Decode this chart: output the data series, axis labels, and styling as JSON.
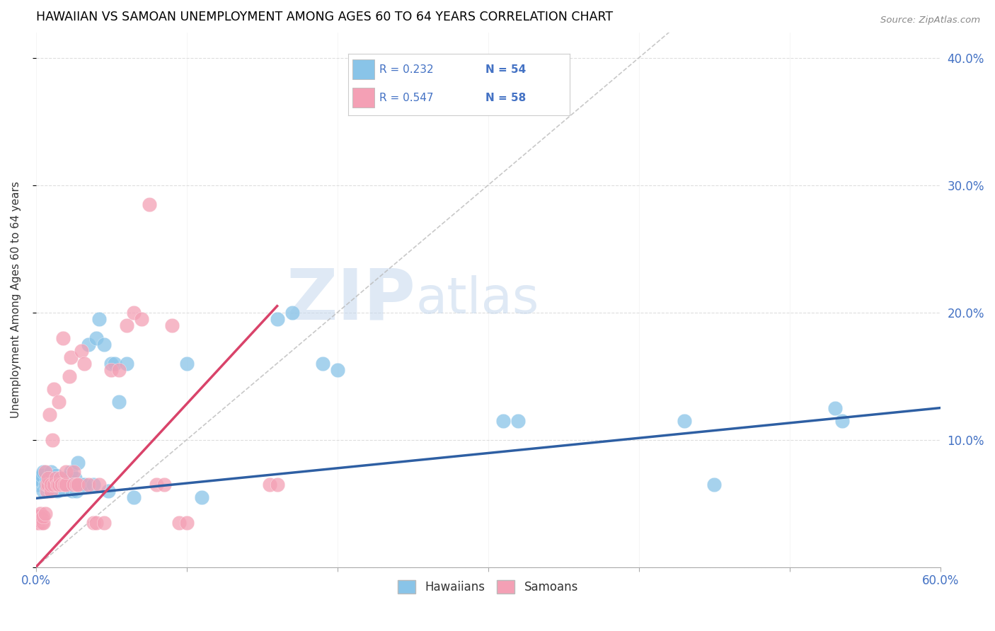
{
  "title": "HAWAIIAN VS SAMOAN UNEMPLOYMENT AMONG AGES 60 TO 64 YEARS CORRELATION CHART",
  "source": "Source: ZipAtlas.com",
  "ylabel": "Unemployment Among Ages 60 to 64 years",
  "xlim": [
    0.0,
    0.6
  ],
  "ylim": [
    0.0,
    0.42
  ],
  "xticks": [
    0.0,
    0.1,
    0.2,
    0.3,
    0.4,
    0.5,
    0.6
  ],
  "yticks": [
    0.0,
    0.1,
    0.2,
    0.3,
    0.4
  ],
  "hawaiian_color": "#89c4e8",
  "samoan_color": "#f4a0b5",
  "hawaiian_line_color": "#2e5fa3",
  "samoan_line_color": "#d9436a",
  "diagonal_color": "#bbbbbb",
  "watermark_zip": "ZIP",
  "watermark_atlas": "atlas",
  "hawaiian_x": [
    0.001,
    0.002,
    0.003,
    0.004,
    0.005,
    0.005,
    0.006,
    0.007,
    0.008,
    0.009,
    0.01,
    0.011,
    0.012,
    0.013,
    0.014,
    0.015,
    0.016,
    0.017,
    0.018,
    0.019,
    0.02,
    0.021,
    0.022,
    0.023,
    0.024,
    0.025,
    0.026,
    0.027,
    0.028,
    0.03,
    0.032,
    0.035,
    0.038,
    0.04,
    0.042,
    0.045,
    0.048,
    0.05,
    0.052,
    0.055,
    0.06,
    0.065,
    0.1,
    0.11,
    0.16,
    0.17,
    0.19,
    0.2,
    0.31,
    0.32,
    0.43,
    0.45,
    0.53,
    0.535
  ],
  "hawaiian_y": [
    0.065,
    0.07,
    0.068,
    0.072,
    0.06,
    0.075,
    0.065,
    0.068,
    0.062,
    0.07,
    0.075,
    0.068,
    0.065,
    0.072,
    0.06,
    0.065,
    0.07,
    0.065,
    0.062,
    0.068,
    0.07,
    0.065,
    0.068,
    0.075,
    0.06,
    0.065,
    0.07,
    0.06,
    0.082,
    0.065,
    0.065,
    0.175,
    0.065,
    0.18,
    0.195,
    0.175,
    0.06,
    0.16,
    0.16,
    0.13,
    0.16,
    0.055,
    0.16,
    0.055,
    0.195,
    0.2,
    0.16,
    0.155,
    0.115,
    0.115,
    0.115,
    0.065,
    0.125,
    0.115
  ],
  "samoan_x": [
    0.001,
    0.001,
    0.002,
    0.002,
    0.003,
    0.003,
    0.004,
    0.004,
    0.005,
    0.005,
    0.006,
    0.006,
    0.007,
    0.007,
    0.008,
    0.008,
    0.009,
    0.01,
    0.01,
    0.011,
    0.012,
    0.012,
    0.013,
    0.014,
    0.015,
    0.015,
    0.016,
    0.017,
    0.018,
    0.019,
    0.02,
    0.02,
    0.022,
    0.023,
    0.025,
    0.025,
    0.027,
    0.028,
    0.03,
    0.032,
    0.035,
    0.038,
    0.04,
    0.042,
    0.045,
    0.05,
    0.055,
    0.06,
    0.065,
    0.07,
    0.075,
    0.08,
    0.085,
    0.09,
    0.095,
    0.1,
    0.155,
    0.16
  ],
  "samoan_y": [
    0.035,
    0.04,
    0.035,
    0.04,
    0.038,
    0.042,
    0.035,
    0.038,
    0.035,
    0.04,
    0.042,
    0.075,
    0.06,
    0.065,
    0.065,
    0.07,
    0.12,
    0.06,
    0.065,
    0.1,
    0.065,
    0.14,
    0.07,
    0.065,
    0.13,
    0.065,
    0.07,
    0.065,
    0.18,
    0.065,
    0.065,
    0.075,
    0.15,
    0.165,
    0.075,
    0.065,
    0.065,
    0.065,
    0.17,
    0.16,
    0.065,
    0.035,
    0.035,
    0.065,
    0.035,
    0.155,
    0.155,
    0.19,
    0.2,
    0.195,
    0.285,
    0.065,
    0.065,
    0.19,
    0.035,
    0.035,
    0.065,
    0.065
  ],
  "hawaiian_line": {
    "x0": 0.0,
    "y0": 0.054,
    "x1": 0.6,
    "y1": 0.125
  },
  "samoan_line": {
    "x0": 0.0,
    "y0": 0.0,
    "x1": 0.16,
    "y1": 0.205
  }
}
